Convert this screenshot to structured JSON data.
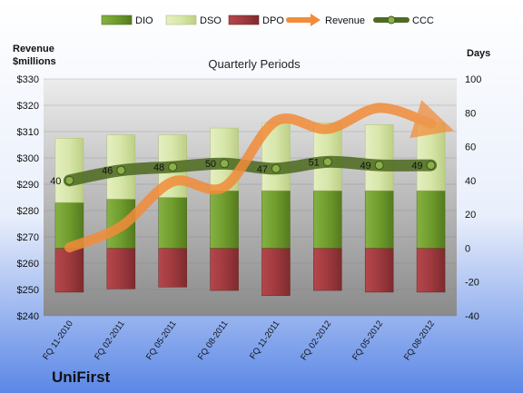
{
  "colors": {
    "bg_top": "#ffffff",
    "bg_bottom": "#5b87e6",
    "plot_top": "#ececec",
    "plot_bottom": "#8a8a8a",
    "dio": "#6e9a2e",
    "dso": "#d7e6a9",
    "dpo": "#9f3a3e",
    "revenue": "#f28c3a",
    "ccc": "#4f6b22"
  },
  "chart_data": {
    "type": "bar",
    "title": "Quarterly Periods",
    "company": "UniFirst",
    "ylabel_left": "Revenue\n$millions",
    "ylabel_right": "Days",
    "categories": [
      "FQ 11-2010",
      "FQ 02-2011",
      "FQ 05-2011",
      "FQ 08-2011",
      "FQ 11-2011",
      "FQ 02-2012",
      "FQ 05-2012",
      "FQ 08-2012"
    ],
    "left_axis": {
      "min": 240,
      "max": 330,
      "step": 10,
      "format": "$"
    },
    "right_axis": {
      "min": -40,
      "max": 100,
      "step": 20
    },
    "grid": true,
    "legend_position": "top",
    "series": [
      {
        "name": "DIO",
        "type": "bar",
        "axis": "right",
        "values": [
          27,
          29,
          30,
          34,
          34,
          34,
          34,
          34
        ]
      },
      {
        "name": "DSO",
        "type": "bar",
        "axis": "right",
        "values": [
          38,
          38,
          37,
          37,
          40,
          40,
          39,
          40
        ]
      },
      {
        "name": "DPO",
        "type": "bar",
        "axis": "right",
        "values": [
          -26,
          -24,
          -23,
          -25,
          -28,
          -25,
          -26,
          -26
        ]
      },
      {
        "name": "Revenue",
        "type": "line",
        "axis": "left",
        "values": [
          266,
          274,
          291,
          289,
          314,
          311,
          319,
          313
        ]
      },
      {
        "name": "CCC",
        "type": "line",
        "axis": "right",
        "values": [
          40,
          46,
          48,
          50,
          47,
          51,
          49,
          49
        ]
      }
    ]
  }
}
